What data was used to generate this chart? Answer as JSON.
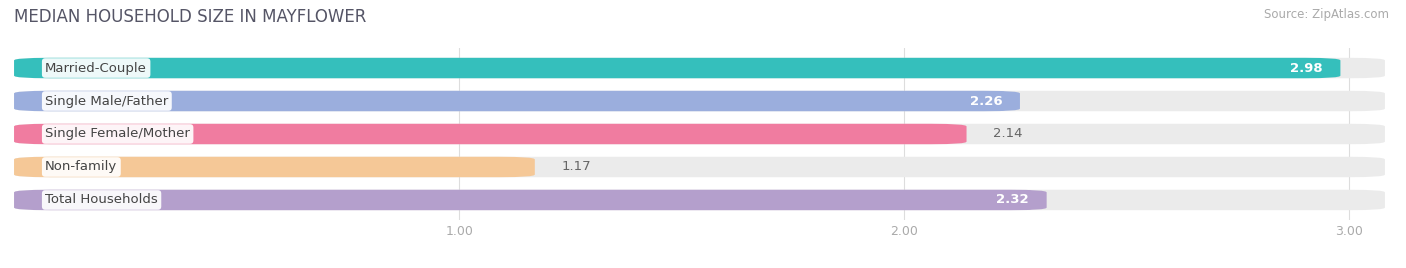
{
  "title": "MEDIAN HOUSEHOLD SIZE IN MAYFLOWER",
  "source": "Source: ZipAtlas.com",
  "categories": [
    "Married-Couple",
    "Single Male/Father",
    "Single Female/Mother",
    "Non-family",
    "Total Households"
  ],
  "values": [
    2.98,
    2.26,
    2.14,
    1.17,
    2.32
  ],
  "bar_colors": [
    "#35bfbc",
    "#9baedd",
    "#f07ca0",
    "#f5c897",
    "#b49fcc"
  ],
  "bar_bg_colors": [
    "#ebebeb",
    "#ebebeb",
    "#ebebeb",
    "#ebebeb",
    "#ebebeb"
  ],
  "xmin": 0.0,
  "xmax": 3.08,
  "xticks": [
    1.0,
    2.0,
    3.0
  ],
  "bar_height": 0.62,
  "label_fontsize": 9.5,
  "value_fontsize": 9.5,
  "title_fontsize": 12,
  "source_fontsize": 8.5,
  "bg_color": "#ffffff"
}
